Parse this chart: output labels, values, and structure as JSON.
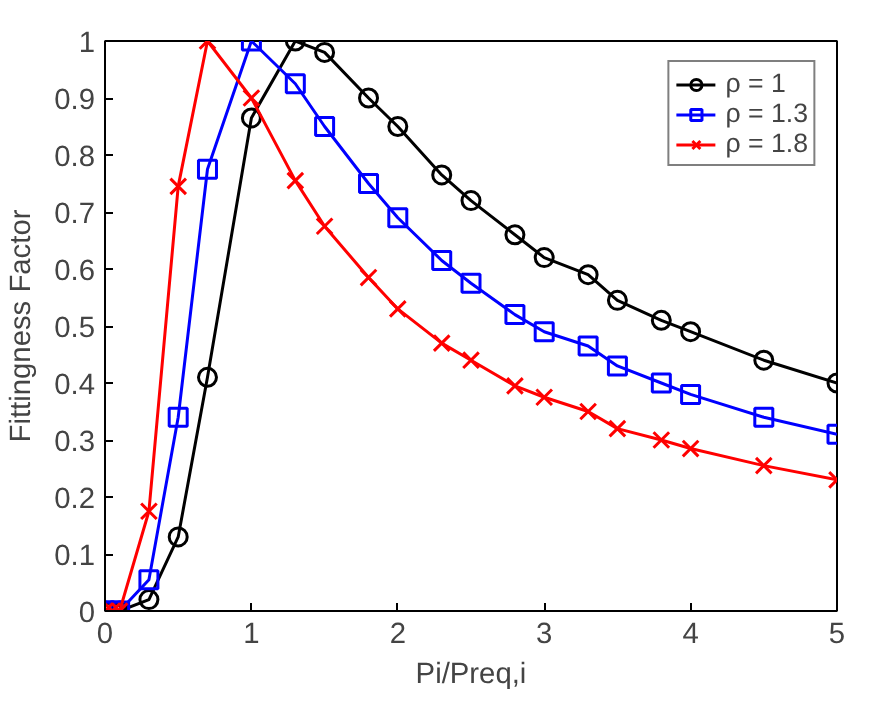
{
  "chart_data": {
    "type": "line",
    "xlabel": "Pi/Preq,i",
    "ylabel": "Fittingness Factor",
    "x": [
      0,
      0.05,
      0.1,
      0.3,
      0.5,
      0.7,
      1.0,
      1.3,
      1.5,
      1.8,
      2.0,
      2.3,
      2.5,
      2.8,
      3.0,
      3.3,
      3.5,
      3.8,
      4.0,
      4.5,
      5.0
    ],
    "series": [
      {
        "name": "ρ = 1",
        "color": "#000000",
        "marker": "circle",
        "values": [
          0,
          0,
          0,
          0.02,
          0.13,
          0.41,
          0.865,
          1.0,
          0.98,
          0.9,
          0.85,
          0.765,
          0.72,
          0.66,
          0.62,
          0.59,
          0.545,
          0.51,
          0.49,
          0.44,
          0.4
        ]
      },
      {
        "name": "ρ = 1.3",
        "color": "#0000ff",
        "marker": "square",
        "values": [
          0,
          0,
          0,
          0.055,
          0.34,
          0.775,
          1.0,
          0.925,
          0.85,
          0.75,
          0.69,
          0.615,
          0.575,
          0.52,
          0.49,
          0.465,
          0.43,
          0.4,
          0.38,
          0.34,
          0.31
        ]
      },
      {
        "name": "ρ = 1.8",
        "color": "#ff0000",
        "marker": "cross",
        "values": [
          0,
          0,
          0,
          0.175,
          0.745,
          1.0,
          0.9,
          0.755,
          0.675,
          0.585,
          0.53,
          0.47,
          0.44,
          0.395,
          0.375,
          0.35,
          0.32,
          0.3,
          0.285,
          0.255,
          0.23
        ]
      }
    ],
    "xlim": [
      0,
      5
    ],
    "ylim": [
      0,
      1
    ],
    "xticks": [
      0,
      1,
      2,
      3,
      4,
      5
    ],
    "yticks": [
      0,
      0.1,
      0.2,
      0.3,
      0.4,
      0.5,
      0.6,
      0.7,
      0.8,
      0.9,
      1
    ],
    "grid": false,
    "legend": "top right",
    "line_style": "solid"
  }
}
